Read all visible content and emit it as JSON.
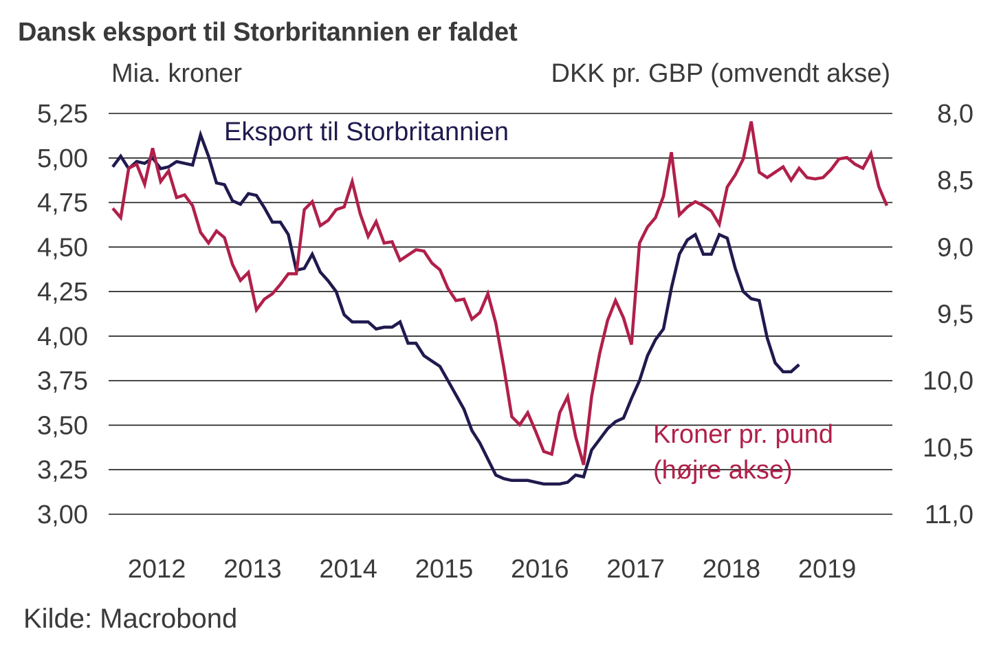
{
  "chart_data": {
    "type": "line",
    "title": "Dansk eksport til Storbritannien er faldet",
    "ylabel_left": "Mia. kroner",
    "ylabel_right": "DKK pr. GBP (omvendt akse)",
    "source": "Kilde: Macrobond",
    "xlabel": "",
    "x_ticks": [
      "2012",
      "2013",
      "2014",
      "2015",
      "2016",
      "2017",
      "2018",
      "2019"
    ],
    "x_range": [
      2011.95,
      2020.15
    ],
    "y_left": {
      "ylim": [
        3.0,
        5.25
      ],
      "ticks": [
        "5,25",
        "5,00",
        "4,75",
        "4,50",
        "4,25",
        "4,00",
        "3,75",
        "3,50",
        "3,25",
        "3,00"
      ],
      "tick_values": [
        5.25,
        5.0,
        4.75,
        4.5,
        4.25,
        4.0,
        3.75,
        3.5,
        3.25,
        3.0
      ]
    },
    "y_right": {
      "ylim": [
        8.0,
        11.0
      ],
      "inverted": true,
      "ticks": [
        "8,0",
        "8,5",
        "9,0",
        "9,5",
        "10,0",
        "10,5",
        "11,0"
      ],
      "tick_values": [
        8.0,
        8.5,
        9.0,
        9.5,
        10.0,
        10.5,
        11.0
      ]
    },
    "grid": true,
    "series": [
      {
        "name": "Eksport til Storbritannien",
        "axis": "left",
        "color": "#1f1a4e",
        "start": 2012.0,
        "step_months": 1,
        "values": [
          4.95,
          5.01,
          4.94,
          4.98,
          4.97,
          5.0,
          4.94,
          4.95,
          4.98,
          4.97,
          4.96,
          5.13,
          5.01,
          4.86,
          4.85,
          4.76,
          4.74,
          4.8,
          4.79,
          4.72,
          4.64,
          4.64,
          4.57,
          4.37,
          4.38,
          4.46,
          4.36,
          4.31,
          4.25,
          4.12,
          4.08,
          4.08,
          4.08,
          4.04,
          4.05,
          4.05,
          4.08,
          3.96,
          3.96,
          3.89,
          3.86,
          3.83,
          3.75,
          3.67,
          3.59,
          3.47,
          3.4,
          3.31,
          3.22,
          3.2,
          3.19,
          3.19,
          3.19,
          3.18,
          3.17,
          3.17,
          3.17,
          3.18,
          3.22,
          3.21,
          3.36,
          3.42,
          3.48,
          3.52,
          3.54,
          3.65,
          3.75,
          3.89,
          3.98,
          4.04,
          4.27,
          4.46,
          4.54,
          4.57,
          4.46,
          4.46,
          4.57,
          4.55,
          4.38,
          4.25,
          4.21,
          4.2,
          3.99,
          3.85,
          3.8,
          3.8,
          3.84
        ]
      },
      {
        "name": "Kroner pr. pund (højre akse)",
        "axis": "right",
        "color": "#b0204a",
        "start": 2012.0,
        "step_months": 1,
        "values": [
          8.71,
          8.78,
          8.41,
          8.38,
          8.53,
          8.26,
          8.51,
          8.43,
          8.63,
          8.61,
          8.69,
          8.89,
          8.97,
          8.88,
          8.93,
          9.13,
          9.25,
          9.19,
          9.47,
          9.39,
          9.35,
          9.28,
          9.2,
          9.2,
          8.72,
          8.66,
          8.84,
          8.8,
          8.72,
          8.7,
          8.51,
          8.75,
          8.92,
          8.81,
          8.97,
          8.96,
          9.1,
          9.06,
          9.02,
          9.03,
          9.12,
          9.17,
          9.31,
          9.4,
          9.39,
          9.54,
          9.49,
          9.35,
          9.57,
          9.9,
          10.27,
          10.33,
          10.24,
          10.38,
          10.53,
          10.55,
          10.24,
          10.12,
          10.42,
          10.63,
          10.12,
          9.8,
          9.55,
          9.4,
          9.53,
          9.73,
          8.97,
          8.85,
          8.78,
          8.62,
          8.29,
          8.76,
          8.7,
          8.66,
          8.69,
          8.73,
          8.83,
          8.55,
          8.46,
          8.34,
          8.06,
          8.44,
          8.48,
          8.44,
          8.4,
          8.5,
          8.41,
          8.48,
          8.49,
          8.48,
          8.42,
          8.34,
          8.33,
          8.38,
          8.41,
          8.3,
          8.55,
          8.69
        ]
      }
    ],
    "annotations": [
      {
        "text": "Eksport til Storbritannien",
        "series": 0
      },
      {
        "text": "Kroner pr. pund",
        "series": 1
      },
      {
        "text": "(højre akse)",
        "series": 1
      }
    ]
  }
}
